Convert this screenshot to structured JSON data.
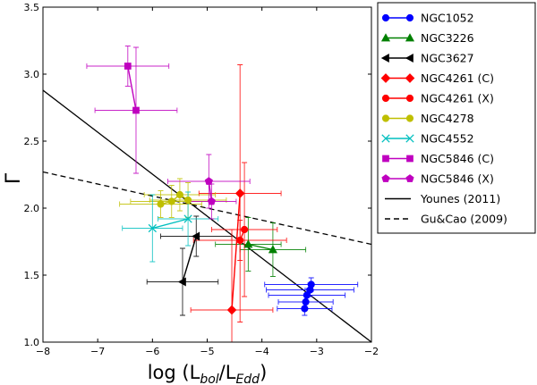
{
  "chart_data": {
    "type": "scatter",
    "title": "",
    "xlabel": {
      "main": "log (L",
      "sub1": "bol",
      "mid": "/L",
      "sub2": "Edd",
      "end": ")"
    },
    "ylabel": "Γ",
    "xlim": [
      -8,
      -2
    ],
    "ylim": [
      1.0,
      3.5
    ],
    "xticks": [
      "−8",
      "−7",
      "−6",
      "−5",
      "−4",
      "−3",
      "−2"
    ],
    "yticks": [
      "1.0",
      "1.5",
      "2.0",
      "2.5",
      "3.0",
      "3.5"
    ],
    "legend_position": "outside-right",
    "series": [
      {
        "name": "NGC1052",
        "color": "#0000ff",
        "marker": "circle",
        "points": [
          {
            "x": -3.1,
            "y": 1.43,
            "xerr": 0.85,
            "yerr": 0.05
          },
          {
            "x": -3.12,
            "y": 1.39,
            "xerr": 0.8,
            "yerr": 0.05
          },
          {
            "x": -3.18,
            "y": 1.35,
            "xerr": 0.7,
            "yerr": 0.05
          },
          {
            "x": -3.2,
            "y": 1.3,
            "xerr": 0.5,
            "yerr": 0.05
          },
          {
            "x": -3.22,
            "y": 1.25,
            "xerr": 0.5,
            "yerr": 0.05
          }
        ]
      },
      {
        "name": "NGC3226",
        "color": "#008000",
        "marker": "triangle-up",
        "points": [
          {
            "x": -4.25,
            "y": 1.73,
            "xerr": 0.6,
            "yerr": 0.2
          },
          {
            "x": -3.8,
            "y": 1.69,
            "xerr": 0.6,
            "yerr": 0.2
          }
        ]
      },
      {
        "name": "NGC3627",
        "color": "#000000",
        "marker": "triangle-left",
        "points": [
          {
            "x": -5.45,
            "y": 1.45,
            "xerr": 0.65,
            "yerr": 0.25
          },
          {
            "x": -5.2,
            "y": 1.79,
            "xerr": 0.65,
            "yerr": 0.15
          }
        ]
      },
      {
        "name": "NGC4261 (C)",
        "color": "#ff0000",
        "marker": "diamond",
        "points": [
          {
            "x": -4.55,
            "y": 1.24,
            "xerr": 0.75,
            "yerr": 0.6
          },
          {
            "x": -4.4,
            "y": 2.11,
            "xerr": 0.75,
            "yerr": 0.96
          }
        ]
      },
      {
        "name": "NGC4261 (X)",
        "color": "#ff0000",
        "marker": "circle",
        "points": [
          {
            "x": -4.4,
            "y": 1.76,
            "xerr": 0.85,
            "yerr": 0.15
          },
          {
            "x": -4.32,
            "y": 1.84,
            "xerr": 0.6,
            "yerr": 0.5
          }
        ]
      },
      {
        "name": "NGC4278",
        "color": "#bfbf00",
        "marker": "circle",
        "points": [
          {
            "x": -5.85,
            "y": 2.03,
            "xerr": 0.75,
            "yerr": 0.1
          },
          {
            "x": -5.65,
            "y": 2.05,
            "xerr": 0.75,
            "yerr": 0.12
          },
          {
            "x": -5.5,
            "y": 2.1,
            "xerr": 0.65,
            "yerr": 0.12
          },
          {
            "x": -5.35,
            "y": 2.06,
            "xerr": 0.7,
            "yerr": 0.13
          }
        ]
      },
      {
        "name": "NGC4552",
        "color": "#00bfbf",
        "marker": "x",
        "points": [
          {
            "x": -6.0,
            "y": 1.85,
            "xerr": 0.55,
            "yerr": 0.25
          },
          {
            "x": -5.35,
            "y": 1.92,
            "xerr": 0.55,
            "yerr": 0.2
          }
        ]
      },
      {
        "name": "NGC5846 (C)",
        "color": "#bf00bf",
        "marker": "square",
        "points": [
          {
            "x": -6.45,
            "y": 3.06,
            "xerr": 0.75,
            "yerr": 0.15
          },
          {
            "x": -6.3,
            "y": 2.73,
            "xerr": 0.75,
            "yerr": 0.47
          }
        ]
      },
      {
        "name": "NGC5846 (X)",
        "color": "#bf00bf",
        "marker": "pentagon",
        "points": [
          {
            "x": -4.97,
            "y": 2.2,
            "xerr": 0.75,
            "yerr": 0.2
          },
          {
            "x": -4.92,
            "y": 2.05,
            "xerr": 0.45,
            "yerr": 0.13
          }
        ]
      },
      {
        "name": "Younes (2011)",
        "color": "#000000",
        "line": "solid",
        "points": [
          {
            "x": -8.0,
            "y": 2.88
          },
          {
            "x": -2.0,
            "y": 1.0
          }
        ]
      },
      {
        "name": "Gu&Cao (2009)",
        "color": "#000000",
        "line": "dashed",
        "points": [
          {
            "x": -8.0,
            "y": 2.27
          },
          {
            "x": -2.0,
            "y": 1.73
          }
        ]
      }
    ]
  }
}
